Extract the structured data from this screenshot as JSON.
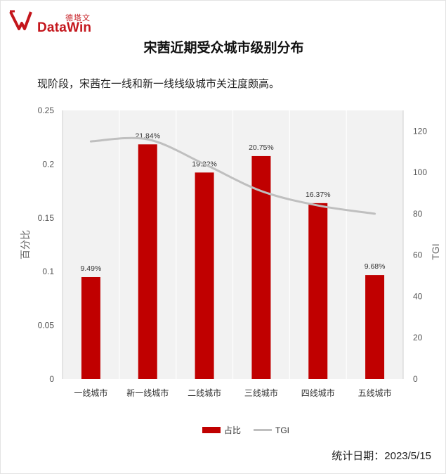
{
  "brand": {
    "cn": "德塔文",
    "en": "DataWin",
    "color": "#c4161c"
  },
  "header": {
    "title": "宋茜近期受众城市级别分布",
    "subtitle": "现阶段，宋茜在一线和新一线线级城市关注度颇高。"
  },
  "footer": {
    "date_label": "统计日期：2023/5/15"
  },
  "chart_data": {
    "type": "bar",
    "categories": [
      "一线城市",
      "新一线城市",
      "二线城市",
      "三线城市",
      "四线城市",
      "五线城市"
    ],
    "series": [
      {
        "name": "占比",
        "type": "bar",
        "axis": "left",
        "color": "#c00000",
        "values": [
          0.0949,
          0.2184,
          0.1922,
          0.2075,
          0.1637,
          0.0968
        ],
        "labels": [
          "9.49%",
          "21.84%",
          "19.22%",
          "20.75%",
          "16.37%",
          "9.68%"
        ]
      },
      {
        "name": "TGI",
        "type": "line",
        "axis": "right",
        "color": "#bfbfbf",
        "values": [
          115,
          116,
          104,
          91,
          84,
          80
        ]
      }
    ],
    "ylabel": "百分比",
    "y2label": "TGI",
    "ylim": [
      0,
      0.25
    ],
    "yticks": [
      "0.25",
      "0.2",
      "0.15",
      "0.1",
      "0.05",
      "0"
    ],
    "ytick_values": [
      0.25,
      0.2,
      0.15,
      0.1,
      0.05,
      0
    ],
    "y2lim": [
      0,
      130
    ],
    "y2ticks": [
      "120",
      "100",
      "80",
      "60",
      "40",
      "20",
      "0"
    ],
    "y2tick_values": [
      120,
      100,
      80,
      60,
      40,
      20,
      0
    ],
    "legend_position": "bottom",
    "plot_background": "#f2f2f2"
  }
}
